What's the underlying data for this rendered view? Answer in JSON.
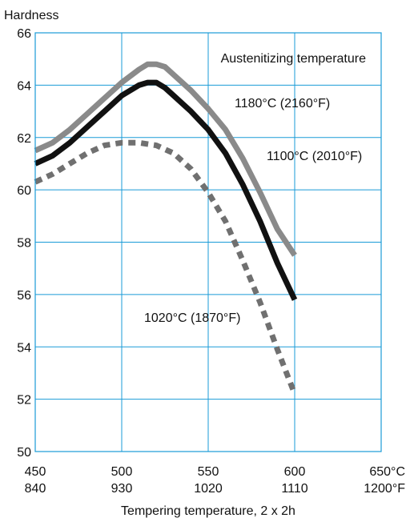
{
  "chart_data": {
    "type": "line",
    "ylabel": "Hardness",
    "xlabel": "Tempering temperature, 2 x 2h",
    "legend_title": "Austenitizing temperature",
    "ylim": [
      50,
      66
    ],
    "xlim": [
      450,
      650
    ],
    "yticks": [
      50,
      52,
      54,
      56,
      58,
      60,
      62,
      64,
      66
    ],
    "xticks": [
      {
        "c": "450",
        "f": "840"
      },
      {
        "c": "500",
        "f": "930"
      },
      {
        "c": "550",
        "f": "1020"
      },
      {
        "c": "600",
        "f": "1110"
      },
      {
        "c": "650°C",
        "f": "1200°F"
      }
    ],
    "grid": true,
    "series": [
      {
        "name": "1180°C (2160°F)",
        "color": "#8a8a8a",
        "style": "solid",
        "x": [
          450,
          460,
          470,
          480,
          490,
          500,
          510,
          515,
          520,
          525,
          530,
          540,
          550,
          560,
          570,
          580,
          590,
          600
        ],
        "y": [
          61.5,
          61.8,
          62.3,
          62.9,
          63.5,
          64.1,
          64.6,
          64.8,
          64.8,
          64.7,
          64.4,
          63.8,
          63.1,
          62.3,
          61.2,
          59.9,
          58.5,
          57.5
        ]
      },
      {
        "name": "1100°C (2010°F)",
        "color": "#111111",
        "style": "solid",
        "x": [
          450,
          460,
          470,
          480,
          490,
          500,
          510,
          515,
          520,
          525,
          530,
          540,
          550,
          560,
          570,
          580,
          590,
          600
        ],
        "y": [
          61.0,
          61.3,
          61.8,
          62.4,
          63.0,
          63.6,
          64.0,
          64.1,
          64.1,
          63.9,
          63.6,
          63.0,
          62.3,
          61.4,
          60.2,
          58.8,
          57.2,
          55.8
        ]
      },
      {
        "name": "1020°C (1870°F)",
        "color": "#707070",
        "style": "dotted",
        "x": [
          450,
          460,
          470,
          480,
          490,
          500,
          510,
          520,
          530,
          540,
          550,
          560,
          570,
          580,
          590,
          600
        ],
        "y": [
          60.3,
          60.6,
          61.0,
          61.4,
          61.7,
          61.8,
          61.8,
          61.7,
          61.4,
          60.8,
          59.9,
          58.8,
          57.3,
          55.7,
          53.9,
          52.2
        ]
      }
    ]
  }
}
